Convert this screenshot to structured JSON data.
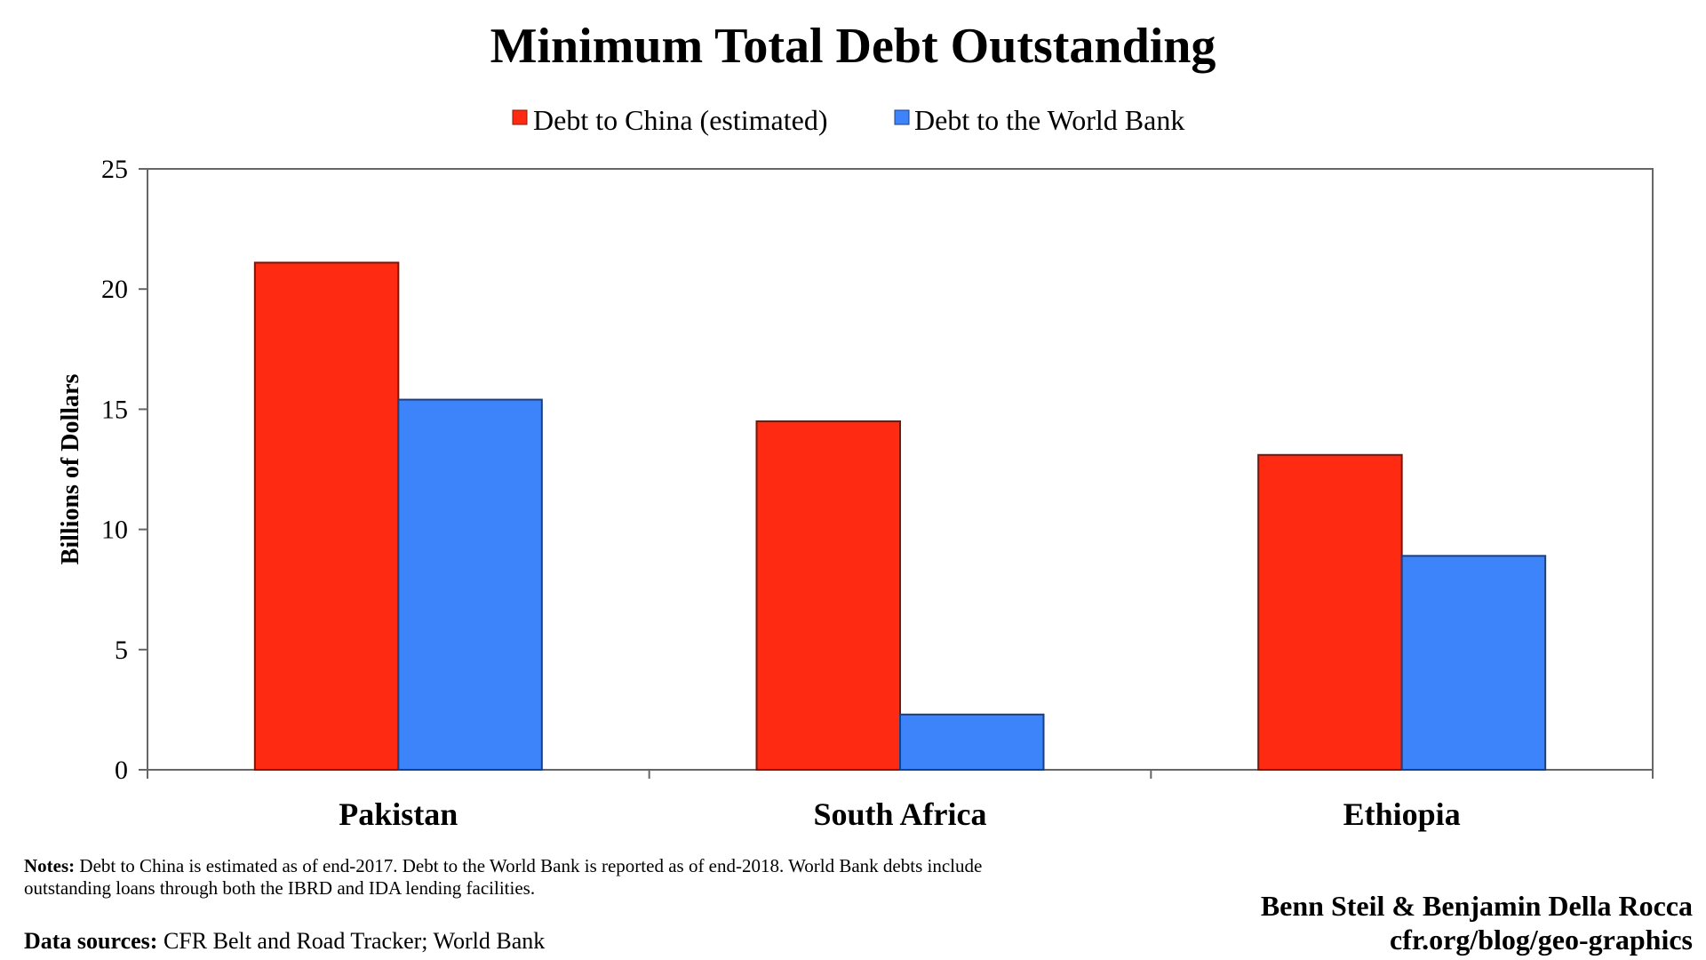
{
  "chart_data": {
    "type": "bar",
    "title": "Minimum Total Debt Outstanding",
    "ylabel": "Billions of Dollars",
    "xlabel": "",
    "categories": [
      "Pakistan",
      "South Africa",
      "Ethiopia"
    ],
    "series": [
      {
        "name": "Debt to China (estimated)",
        "color": "#ff2a12",
        "values": [
          21.1,
          14.5,
          13.1
        ]
      },
      {
        "name": "Debt to the World Bank",
        "color": "#3d84fb",
        "values": [
          15.4,
          2.3,
          8.9
        ]
      }
    ],
    "ylim": [
      0,
      25
    ],
    "yticks": [
      "0",
      "5",
      "10",
      "15",
      "20",
      "25"
    ],
    "grid": false,
    "legend_position": "top-center"
  },
  "footer": {
    "notes_label": "Notes:",
    "notes_text": "Debt to China is estimated as of end-2017. Debt to the World Bank is reported as of end-2018. World Bank debts include outstanding loans through both the IBRD and IDA lending facilities.",
    "sources_label": "Data sources:",
    "sources_text": "CFR Belt and Road Tracker; World Bank",
    "credit_authors": "Benn Steil & Benjamin Della Rocca",
    "credit_url": "cfr.org/blog/geo-graphics"
  }
}
